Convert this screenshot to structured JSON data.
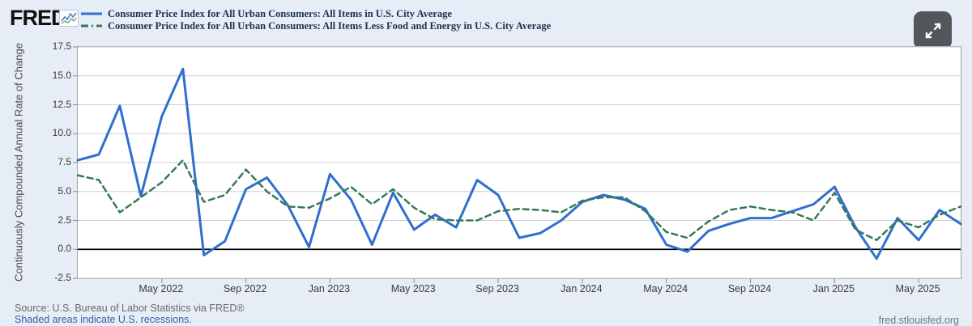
{
  "header": {
    "logo_text": "FRED",
    "legend_items": [
      {
        "label": "Consumer Price Index for All Urban Consumers: All Items in U.S. City Average",
        "color": "#2f6fce",
        "line_style": "solid"
      },
      {
        "label": "Consumer Price Index for All Urban Consumers: All Items Less Food and Energy in U.S. City Average",
        "color": "#35795a",
        "line_style": "dashed"
      }
    ]
  },
  "chart_data": {
    "type": "line",
    "title": "",
    "xlabel": "",
    "ylabel": "Continuously Compounded Annual Rate of Change",
    "ylim": [
      -2.5,
      17.5
    ],
    "grid": true,
    "legend_position": "top-left",
    "yticks": [
      "17.5",
      "15.0",
      "12.5",
      "10.0",
      "7.5",
      "5.0",
      "2.5",
      "0.0",
      "-2.5"
    ],
    "x": [
      "Jan 2022",
      "Feb 2022",
      "Mar 2022",
      "Apr 2022",
      "May 2022",
      "Jun 2022",
      "Jul 2022",
      "Aug 2022",
      "Sep 2022",
      "Oct 2022",
      "Nov 2022",
      "Dec 2022",
      "Jan 2023",
      "Feb 2023",
      "Mar 2023",
      "Apr 2023",
      "May 2023",
      "Jun 2023",
      "Jul 2023",
      "Aug 2023",
      "Sep 2023",
      "Oct 2023",
      "Nov 2023",
      "Dec 2023",
      "Jan 2024",
      "Feb 2024",
      "Mar 2024",
      "Apr 2024",
      "May 2024",
      "Jun 2024",
      "Jul 2024",
      "Aug 2024",
      "Sep 2024",
      "Oct 2024",
      "Nov 2024",
      "Dec 2024",
      "Jan 2025",
      "Feb 2025",
      "Mar 2025",
      "Apr 2025",
      "May 2025",
      "Jun 2025",
      "Jul 2025"
    ],
    "x_ticks": [
      {
        "index": 4,
        "label": "May 2022"
      },
      {
        "index": 8,
        "label": "Sep 2022"
      },
      {
        "index": 12,
        "label": "Jan 2023"
      },
      {
        "index": 16,
        "label": "May 2023"
      },
      {
        "index": 20,
        "label": "Sep 2023"
      },
      {
        "index": 24,
        "label": "Jan 2024"
      },
      {
        "index": 28,
        "label": "May 2024"
      },
      {
        "index": 32,
        "label": "Sep 2024"
      },
      {
        "index": 36,
        "label": "Jan 2025"
      },
      {
        "index": 40,
        "label": "May 2025"
      }
    ],
    "series": [
      {
        "name": "Consumer Price Index for All Urban Consumers: All Items in U.S. City Average",
        "color": "#2f6fce",
        "dash": "",
        "width": 3,
        "values": [
          7.7,
          8.2,
          12.4,
          4.6,
          11.5,
          15.6,
          -0.5,
          0.7,
          5.2,
          6.2,
          3.8,
          0.2,
          6.5,
          4.3,
          0.4,
          4.9,
          1.7,
          3.0,
          1.9,
          6.0,
          4.7,
          1.0,
          1.4,
          2.5,
          4.1,
          4.7,
          4.3,
          3.5,
          0.4,
          -0.2,
          1.6,
          2.2,
          2.7,
          2.7,
          3.3,
          3.9,
          5.4,
          1.9,
          -0.8,
          2.7,
          0.8,
          3.4,
          2.2
        ]
      },
      {
        "name": "Consumer Price Index for All Urban Consumers: All Items Less Food and Energy in U.S. City Average",
        "color": "#35795a",
        "dash": "7,5",
        "width": 2.5,
        "values": [
          6.4,
          6.0,
          3.2,
          4.5,
          5.8,
          7.7,
          4.1,
          4.7,
          6.9,
          5.0,
          3.7,
          3.6,
          4.4,
          5.4,
          3.9,
          5.2,
          3.6,
          2.6,
          2.5,
          2.5,
          3.3,
          3.5,
          3.4,
          3.2,
          4.2,
          4.5,
          4.5,
          3.3,
          1.5,
          1.0,
          2.4,
          3.4,
          3.7,
          3.4,
          3.2,
          2.5,
          4.9,
          1.7,
          0.8,
          2.5,
          1.9,
          3.0,
          3.7
        ]
      }
    ]
  },
  "footer": {
    "source_text": "Source: U.S. Bureau of Labor Statistics via FRED®",
    "recession_note": "Shaded areas indicate U.S. recessions.",
    "site_url": "fred.stlouisfed.org"
  },
  "colors": {
    "page_background": "#e7edf6",
    "plot_background": "#ffffff",
    "gridline": "#cfcfcf",
    "zero_line": "#000000",
    "legend_text": "#1d3050",
    "expand_button_background": "#53575c"
  }
}
